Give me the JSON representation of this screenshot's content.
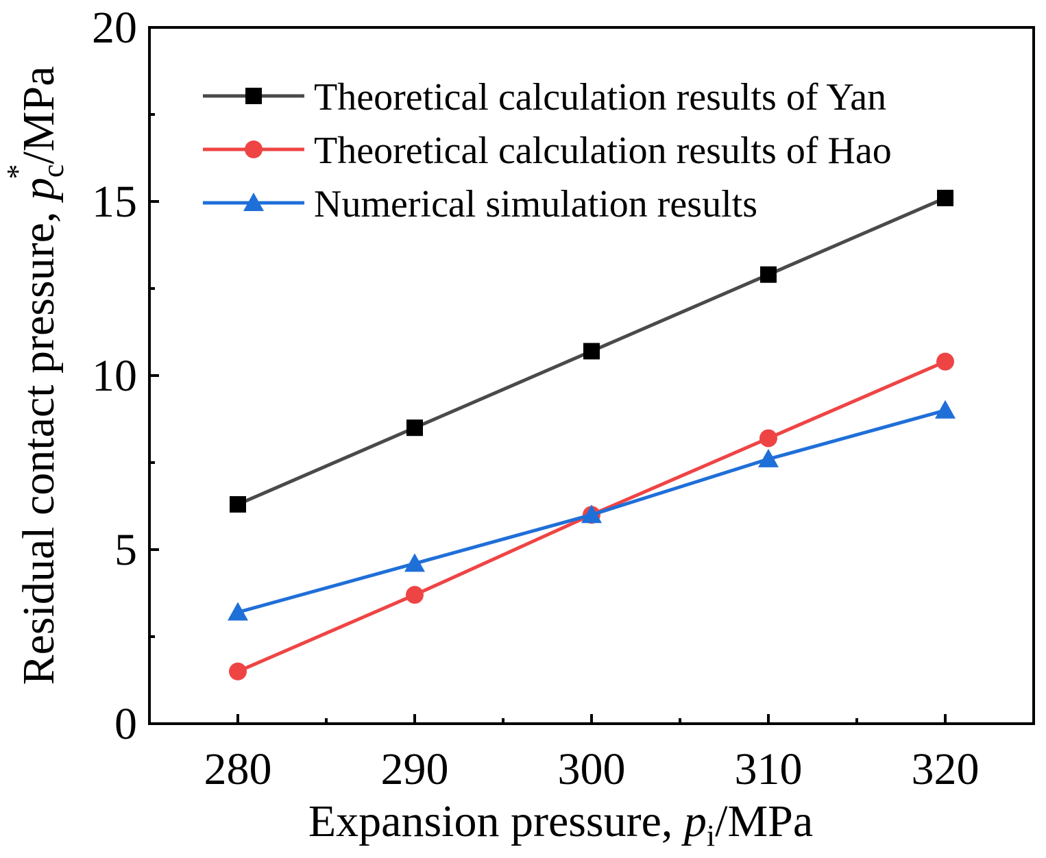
{
  "chart_data": {
    "type": "line",
    "title": "",
    "x": [
      280,
      290,
      300,
      310,
      320
    ],
    "xlim": [
      275,
      325
    ],
    "ylim": [
      0,
      20
    ],
    "xticks": [
      "280",
      "290",
      "300",
      "310",
      "320"
    ],
    "yticks": [
      "0",
      "5",
      "10",
      "15",
      "20"
    ],
    "xlabel": {
      "prefix": "Expansion pressure, ",
      "var": "p",
      "sub": "i",
      "suffix": "/MPa"
    },
    "ylabel": {
      "prefix": "Residual contact pressure, ",
      "var": "p",
      "sub": "c",
      "sup": "*",
      "suffix": "/MPa"
    },
    "legend_position": "top-left",
    "grid": false,
    "series": [
      {
        "name": "Theoretical calculation results of Yan",
        "values": [
          6.3,
          8.5,
          10.7,
          12.9,
          15.1
        ],
        "color": "#4a4a4a",
        "marker_color": "#000000",
        "marker": "square"
      },
      {
        "name": "Theoretical calculation results of Hao",
        "values": [
          1.5,
          3.7,
          6.0,
          8.2,
          10.4
        ],
        "color": "#ef4444",
        "marker_color": "#ef4444",
        "marker": "circle"
      },
      {
        "name": "Numerical simulation results",
        "values": [
          3.2,
          4.6,
          6.0,
          7.6,
          9.0
        ],
        "color": "#1f6fd8",
        "marker_color": "#1f6fd8",
        "marker": "triangle"
      }
    ]
  }
}
